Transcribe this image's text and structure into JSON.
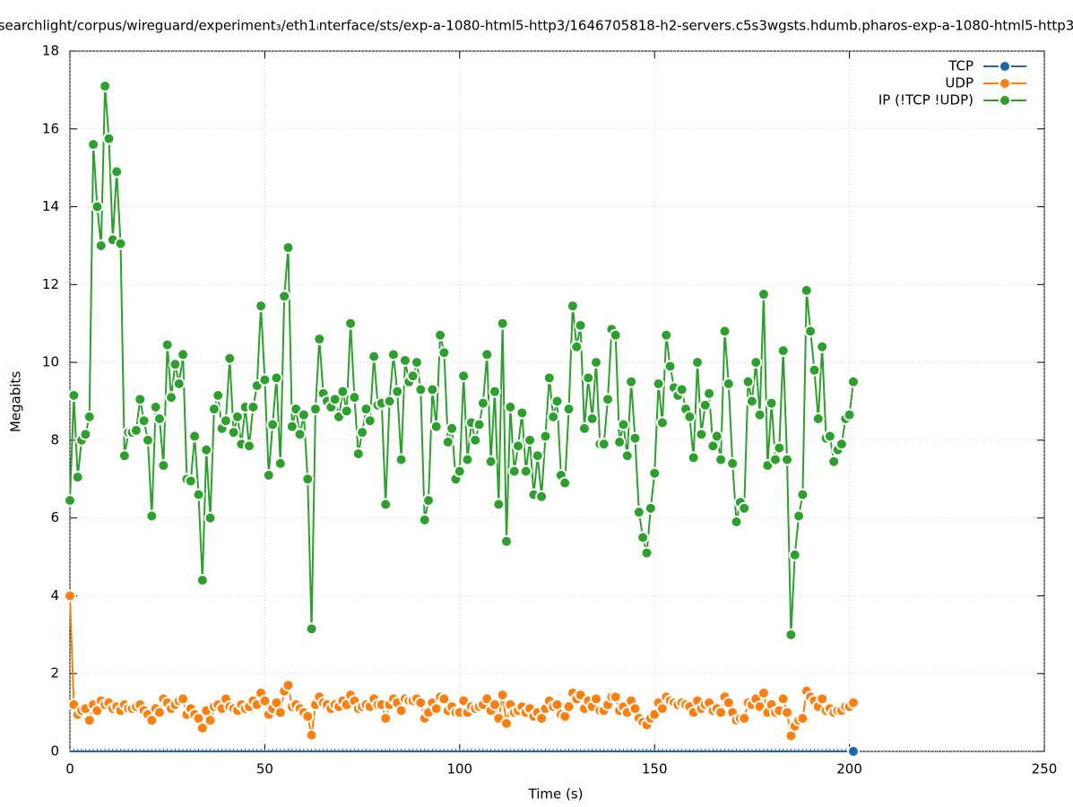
{
  "chart_data": {
    "type": "line",
    "title": "searchlight/corpus/wireguard/experiment₃/eth1ᵢnterface/sts/exp-a-1080-html5-http3/1646705818-h2-servers.c5s3wgsts.hdumb.pharos-exp-a-1080-html5-http3",
    "x_label": "Time (s)",
    "y_label": "Megabits",
    "xlim": [
      0,
      250
    ],
    "xticks": [
      0,
      50,
      100,
      150,
      200,
      250
    ],
    "ylim": [
      0,
      18
    ],
    "yticks": [
      0,
      2,
      4,
      6,
      8,
      10,
      12,
      14,
      16,
      18
    ],
    "grid": true,
    "legend": "top-right",
    "x": [
      0,
      1,
      2,
      3,
      4,
      5,
      6,
      7,
      8,
      9,
      10,
      11,
      12,
      13,
      14,
      15,
      16,
      17,
      18,
      19,
      20,
      21,
      22,
      23,
      24,
      25,
      26,
      27,
      28,
      29,
      30,
      31,
      32,
      33,
      34,
      35,
      36,
      37,
      38,
      39,
      40,
      41,
      42,
      43,
      44,
      45,
      46,
      47,
      48,
      49,
      50,
      51,
      52,
      53,
      54,
      55,
      56,
      57,
      58,
      59,
      60,
      61,
      62,
      63,
      64,
      65,
      66,
      67,
      68,
      69,
      70,
      71,
      72,
      73,
      74,
      75,
      76,
      77,
      78,
      79,
      80,
      81,
      82,
      83,
      84,
      85,
      86,
      87,
      88,
      89,
      90,
      91,
      92,
      93,
      94,
      95,
      96,
      97,
      98,
      99,
      100,
      101,
      102,
      103,
      104,
      105,
      106,
      107,
      108,
      109,
      110,
      111,
      112,
      113,
      114,
      115,
      116,
      117,
      118,
      119,
      120,
      121,
      122,
      123,
      124,
      125,
      126,
      127,
      128,
      129,
      130,
      131,
      132,
      133,
      134,
      135,
      136,
      137,
      138,
      139,
      140,
      141,
      142,
      143,
      144,
      145,
      146,
      147,
      148,
      149,
      150,
      151,
      152,
      153,
      154,
      155,
      156,
      157,
      158,
      159,
      160,
      161,
      162,
      163,
      164,
      165,
      166,
      167,
      168,
      169,
      170,
      171,
      172,
      173,
      174,
      175,
      176,
      177,
      178,
      179,
      180,
      181,
      182,
      183,
      184,
      185,
      186,
      187,
      188,
      189,
      190,
      191,
      192,
      193,
      194,
      195,
      196,
      197,
      198,
      199,
      200,
      201
    ],
    "series": [
      {
        "name": "TCP",
        "color": "#1a64b0",
        "values": [
          0,
          0,
          0,
          0,
          0,
          0,
          0,
          0,
          0,
          0,
          0,
          0,
          0,
          0,
          0,
          0,
          0,
          0,
          0,
          0,
          0,
          0,
          0,
          0,
          0,
          0,
          0,
          0,
          0,
          0,
          0,
          0,
          0,
          0,
          0,
          0,
          0,
          0,
          0,
          0,
          0,
          0,
          0,
          0,
          0,
          0,
          0,
          0,
          0,
          0,
          0,
          0,
          0,
          0,
          0,
          0,
          0,
          0,
          0,
          0,
          0,
          0,
          0,
          0,
          0,
          0,
          0,
          0,
          0,
          0,
          0,
          0,
          0,
          0,
          0,
          0,
          0,
          0,
          0,
          0,
          0,
          0,
          0,
          0,
          0,
          0,
          0,
          0,
          0,
          0,
          0,
          0,
          0,
          0,
          0,
          0,
          0,
          0,
          0,
          0,
          0,
          0,
          0,
          0,
          0,
          0,
          0,
          0,
          0,
          0,
          0,
          0,
          0,
          0,
          0,
          0,
          0,
          0,
          0,
          0,
          0,
          0,
          0,
          0,
          0,
          0,
          0,
          0,
          0,
          0,
          0,
          0,
          0,
          0,
          0,
          0,
          0,
          0,
          0,
          0,
          0,
          0,
          0,
          0,
          0,
          0,
          0,
          0,
          0,
          0,
          0,
          0,
          0,
          0,
          0,
          0,
          0,
          0,
          0,
          0,
          0,
          0,
          0,
          0,
          0,
          0,
          0,
          0,
          0,
          0,
          0,
          0,
          0,
          0,
          0,
          0,
          0,
          0,
          0,
          0,
          0,
          0,
          0,
          0,
          0,
          0,
          0,
          0,
          0,
          0,
          0,
          0,
          0,
          0,
          0,
          0,
          0,
          0,
          0,
          0,
          0,
          0
        ]
      },
      {
        "name": "UDP",
        "color": "#ff7f0e",
        "values": [
          4.0,
          1.2,
          0.95,
          1.05,
          1.1,
          0.8,
          1.2,
          1.05,
          1.3,
          1.2,
          1.25,
          1.1,
          1.15,
          1.05,
          1.2,
          1.1,
          1.1,
          1.15,
          1.2,
          1.05,
          0.95,
          0.8,
          1.1,
          1.0,
          1.35,
          1.25,
          1.1,
          1.2,
          1.3,
          1.35,
          0.95,
          1.1,
          0.95,
          0.85,
          0.6,
          1.05,
          0.8,
          1.15,
          1.2,
          1.1,
          1.35,
          1.15,
          1.1,
          1.05,
          1.2,
          1.1,
          1.15,
          1.3,
          1.2,
          1.5,
          1.3,
          0.95,
          1.1,
          1.25,
          1.0,
          1.55,
          1.7,
          1.15,
          1.2,
          1.1,
          1.0,
          0.9,
          0.42,
          1.2,
          1.4,
          1.25,
          1.2,
          1.1,
          1.2,
          1.15,
          1.3,
          1.2,
          1.45,
          1.3,
          1.1,
          1.15,
          1.2,
          1.15,
          1.35,
          1.2,
          1.2,
          0.85,
          1.2,
          1.35,
          1.25,
          1.05,
          1.35,
          1.3,
          1.3,
          1.35,
          1.25,
          0.85,
          1.0,
          1.25,
          1.1,
          1.4,
          1.35,
          1.05,
          1.15,
          1.0,
          1.0,
          1.3,
          1.0,
          1.15,
          1.1,
          1.15,
          1.2,
          1.35,
          1.05,
          1.2,
          0.85,
          1.45,
          0.72,
          1.2,
          1.0,
          1.05,
          1.15,
          1.0,
          1.1,
          0.9,
          1.0,
          0.85,
          1.1,
          1.3,
          1.15,
          1.2,
          0.95,
          0.9,
          1.15,
          1.5,
          1.35,
          1.45,
          1.1,
          1.3,
          1.15,
          1.35,
          1.05,
          1.05,
          1.2,
          1.4,
          1.4,
          1.05,
          1.15,
          1.0,
          1.3,
          1.1,
          0.85,
          0.75,
          0.68,
          0.85,
          0.95,
          1.25,
          1.1,
          1.4,
          1.3,
          1.25,
          1.2,
          1.25,
          1.2,
          1.15,
          1.0,
          1.3,
          1.1,
          1.2,
          1.25,
          1.05,
          1.1,
          1.0,
          1.4,
          1.25,
          1.0,
          0.8,
          0.85,
          0.85,
          1.25,
          1.2,
          1.35,
          1.15,
          1.5,
          1.0,
          1.2,
          1.0,
          1.05,
          1.35,
          1.0,
          0.4,
          0.65,
          0.8,
          0.85,
          1.55,
          1.4,
          1.3,
          1.15,
          1.35,
          1.05,
          1.1,
          1.0,
          1.05,
          1.05,
          1.15,
          1.15,
          1.25
        ]
      },
      {
        "name": "IP (!TCP  !UDP)",
        "color": "#2ca02c",
        "values": [
          6.45,
          9.15,
          7.05,
          8.0,
          8.15,
          8.6,
          15.6,
          14.0,
          13.0,
          17.1,
          15.75,
          13.15,
          14.9,
          13.05,
          7.6,
          8.2,
          8.2,
          8.25,
          9.05,
          8.5,
          8.0,
          6.05,
          8.85,
          8.55,
          7.35,
          10.45,
          9.1,
          9.95,
          9.45,
          10.2,
          7.0,
          6.95,
          8.1,
          6.6,
          4.4,
          7.75,
          6.0,
          8.8,
          9.15,
          8.3,
          8.5,
          10.1,
          8.2,
          8.6,
          7.9,
          8.85,
          7.85,
          8.85,
          9.4,
          11.45,
          9.55,
          7.1,
          8.4,
          9.6,
          7.4,
          11.7,
          12.95,
          8.35,
          8.8,
          8.15,
          8.65,
          7.0,
          3.15,
          8.8,
          10.6,
          9.2,
          9.0,
          8.85,
          9.05,
          8.6,
          9.25,
          8.75,
          11.0,
          9.1,
          7.65,
          8.2,
          8.8,
          8.5,
          10.15,
          8.9,
          8.95,
          6.35,
          9.0,
          10.2,
          9.25,
          7.5,
          10.05,
          9.5,
          9.65,
          10.0,
          9.3,
          5.95,
          6.45,
          9.3,
          8.35,
          10.7,
          10.25,
          7.95,
          8.3,
          7.0,
          7.2,
          9.65,
          7.5,
          8.45,
          8.0,
          8.4,
          8.95,
          10.2,
          7.45,
          9.25,
          6.35,
          11.0,
          5.4,
          8.85,
          7.2,
          7.85,
          8.7,
          7.2,
          8.0,
          6.6,
          7.6,
          6.55,
          8.1,
          9.6,
          8.6,
          9.0,
          7.1,
          6.9,
          8.8,
          11.45,
          10.4,
          10.95,
          8.3,
          9.6,
          8.55,
          10.0,
          7.9,
          7.9,
          9.05,
          10.85,
          10.7,
          7.95,
          8.4,
          7.6,
          9.5,
          8.05,
          6.15,
          5.5,
          5.1,
          6.25,
          7.15,
          9.45,
          8.45,
          10.7,
          9.9,
          9.35,
          9.15,
          9.3,
          8.8,
          8.6,
          7.55,
          10.0,
          8.15,
          8.9,
          9.2,
          7.85,
          8.1,
          7.5,
          10.8,
          9.45,
          7.4,
          5.9,
          6.4,
          6.25,
          9.5,
          9.0,
          10.0,
          8.65,
          11.75,
          7.35,
          8.95,
          7.5,
          7.8,
          10.3,
          7.5,
          3.0,
          5.05,
          6.05,
          6.6,
          11.85,
          10.8,
          9.8,
          8.55,
          10.4,
          8.05,
          8.1,
          7.45,
          7.75,
          7.9,
          8.55,
          8.65,
          9.5
        ]
      }
    ]
  }
}
